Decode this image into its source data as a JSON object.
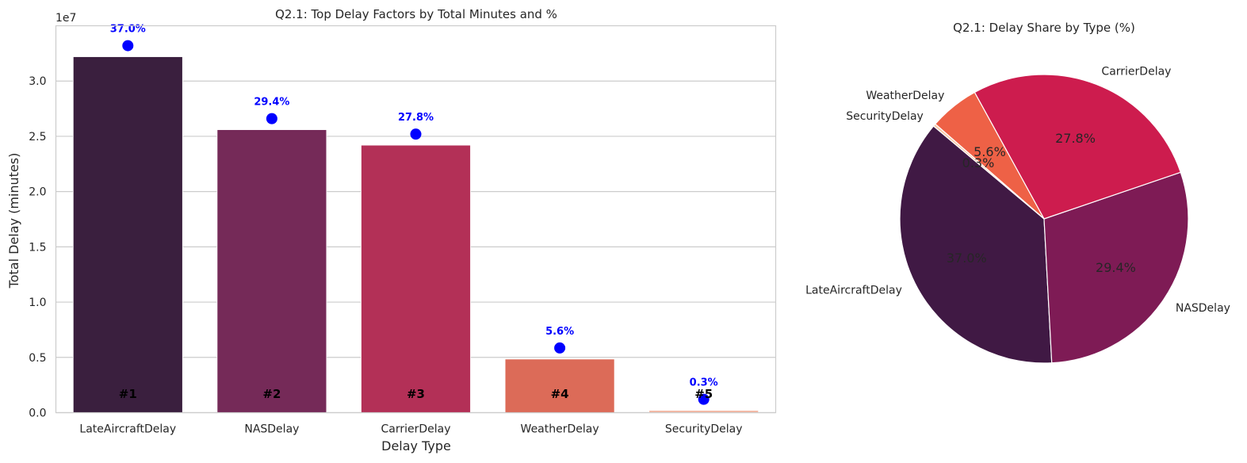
{
  "chart_data": [
    {
      "type": "bar",
      "title": "Q2.1: Top Delay Factors by Total Minutes and %",
      "xlabel": "Delay Type",
      "ylabel": "Total Delay (minutes)",
      "y_offset_label": "1e7",
      "y_scale": 10000000,
      "ylim": [
        0,
        3.5
      ],
      "yticks": [
        "0.0",
        "0.5",
        "1.0",
        "1.5",
        "2.0",
        "2.5",
        "3.0"
      ],
      "grid": true,
      "categories": [
        "LateAircraftDelay",
        "NASDelay",
        "CarrierDelay",
        "WeatherDelay",
        "SecurityDelay"
      ],
      "values": [
        32200000,
        25600000,
        24200000,
        4850000,
        210000
      ],
      "bar_colors": [
        "#3a1f3e",
        "#752a58",
        "#b33057",
        "#dc6b58",
        "#f3b8a4"
      ],
      "rank_labels": [
        "#1",
        "#2",
        "#3",
        "#4",
        "#5"
      ],
      "percent_labels": [
        "37.0%",
        "29.4%",
        "27.8%",
        "5.6%",
        "0.3%"
      ],
      "marker_color": "#0000ff"
    },
    {
      "type": "pie",
      "title": "Q2.1: Delay Share by Type (%)",
      "labels": [
        "LateAircraftDelay",
        "NASDelay",
        "CarrierDelay",
        "WeatherDelay",
        "SecurityDelay"
      ],
      "values": [
        37.0,
        29.4,
        27.8,
        5.6,
        0.3
      ],
      "percent_labels": [
        "37.0%",
        "29.4%",
        "27.8%",
        "5.6%",
        "0.3%"
      ],
      "colors": [
        "#401944",
        "#7e1b55",
        "#cd1c4e",
        "#ee6146",
        "#f8c9a8"
      ],
      "start_angle": 140
    }
  ]
}
